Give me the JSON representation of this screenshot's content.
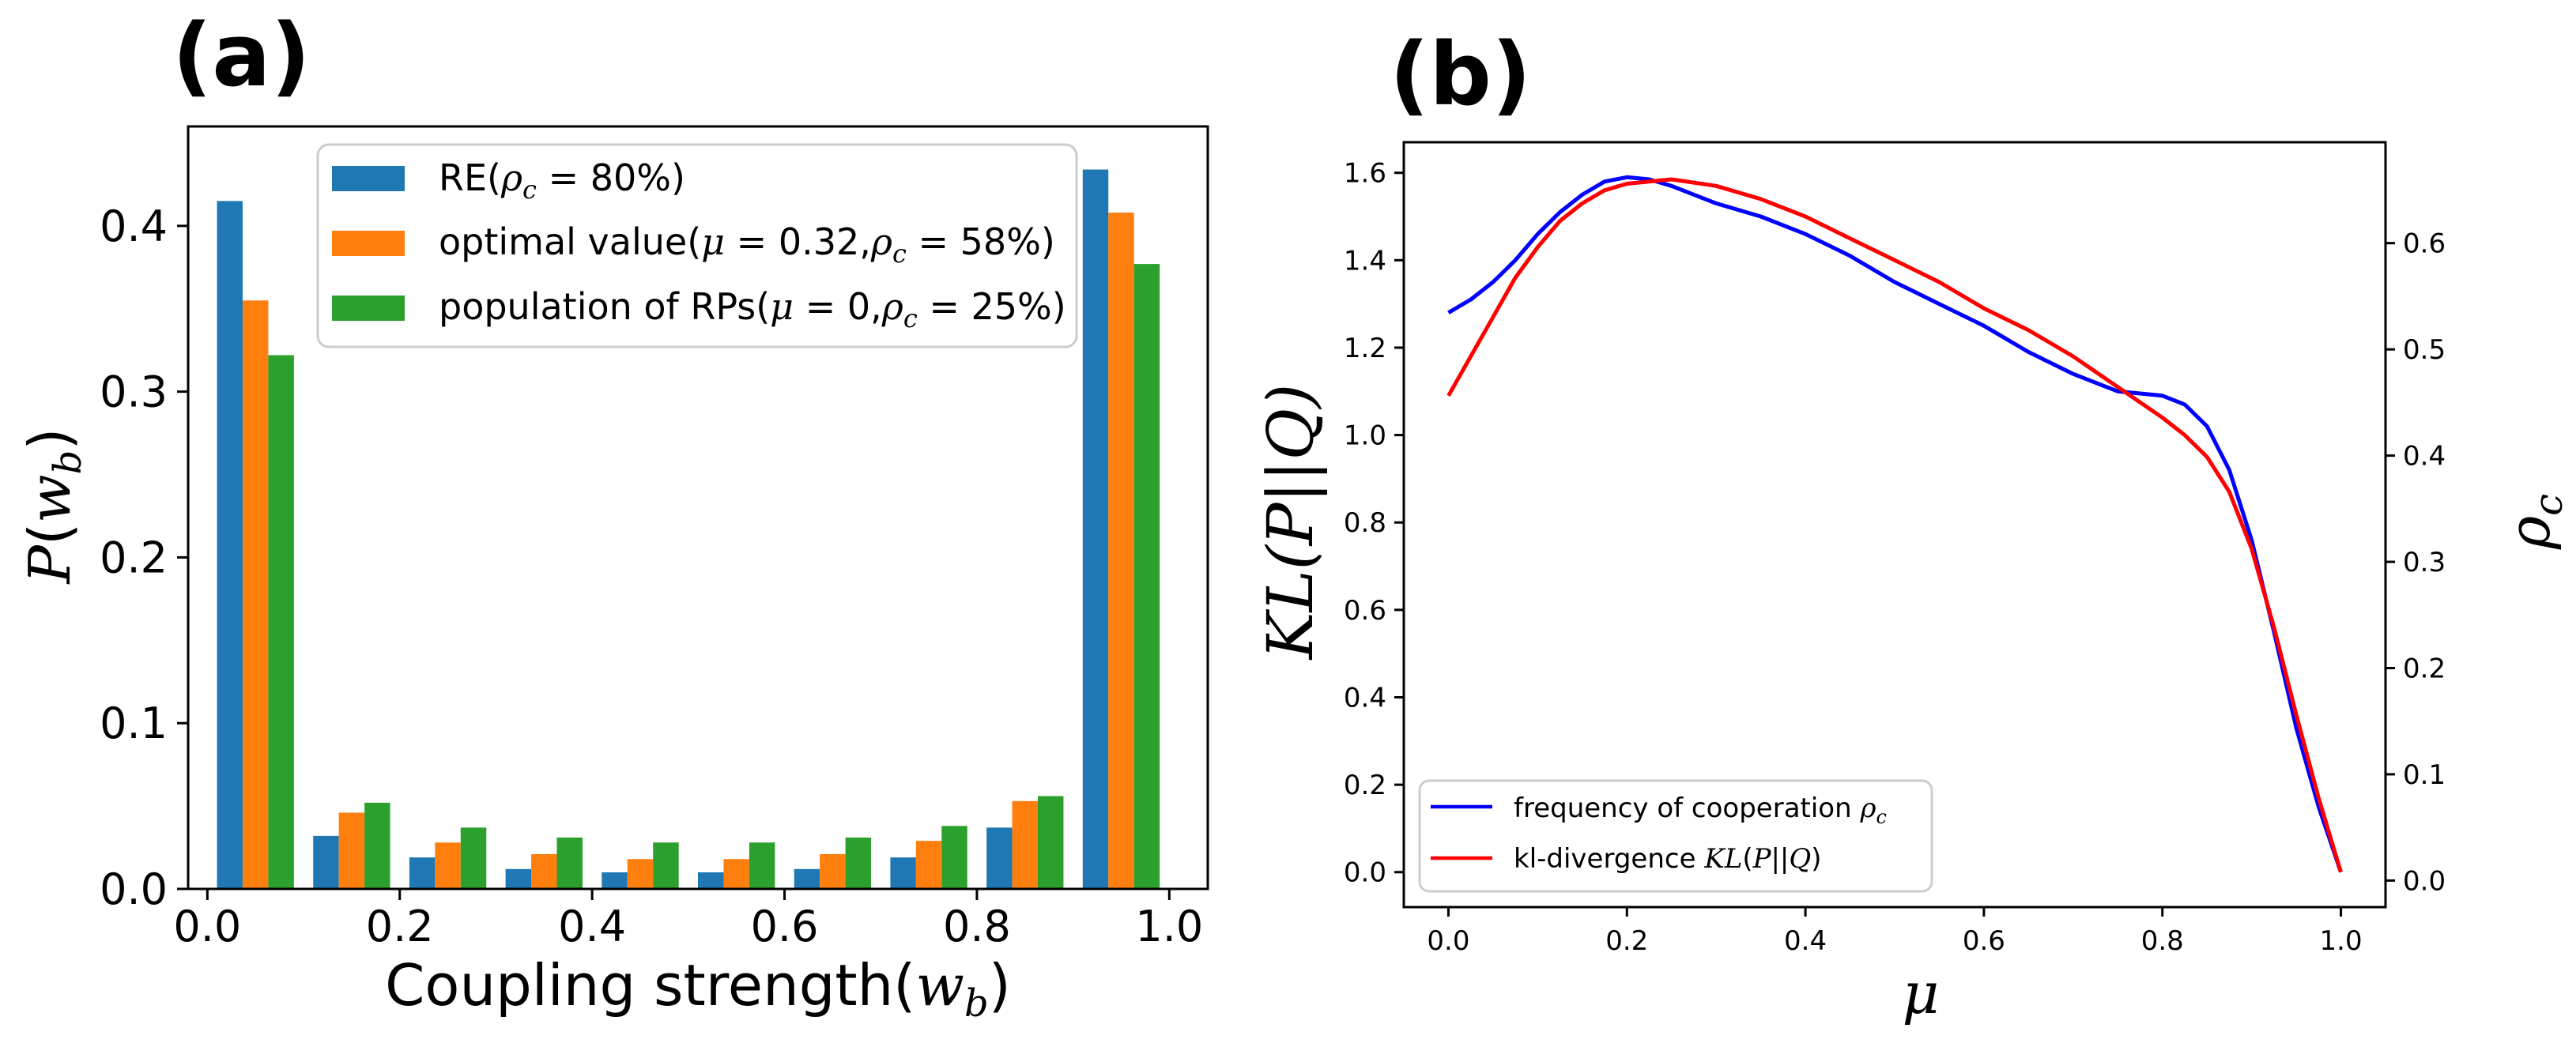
{
  "panel_a": {
    "label": "(a)",
    "chart_data": {
      "type": "bar",
      "xlabel": "Coupling strength(w_b)",
      "ylabel": "P(w_b)",
      "xlim": [
        -0.02,
        1.04
      ],
      "ylim": [
        0,
        0.46
      ],
      "xticks": [
        0.0,
        0.2,
        0.4,
        0.6,
        0.8,
        1.0
      ],
      "xtick_labels": [
        "0.0",
        "0.2",
        "0.4",
        "0.6",
        "0.8",
        "1.0"
      ],
      "yticks": [
        0.0,
        0.1,
        0.2,
        0.3,
        0.4
      ],
      "ytick_labels": [
        "0.0",
        "0.1",
        "0.2",
        "0.3",
        "0.4"
      ],
      "bin_centers": [
        0.05,
        0.15,
        0.25,
        0.35,
        0.45,
        0.55,
        0.65,
        0.75,
        0.85,
        0.95
      ],
      "series": [
        {
          "name": "RE",
          "legend": "RE(ρ_c = 80%)",
          "color": "#1f77b4",
          "values": [
            0.415,
            0.032,
            0.019,
            0.012,
            0.01,
            0.01,
            0.012,
            0.019,
            0.037,
            0.434
          ]
        },
        {
          "name": "optimal",
          "legend": "optimal value(μ = 0.32, ρ_c = 58%)",
          "color": "#ff7f0e",
          "values": [
            0.355,
            0.046,
            0.028,
            0.021,
            0.018,
            0.018,
            0.021,
            0.029,
            0.053,
            0.408
          ]
        },
        {
          "name": "population",
          "legend": "population of RPs(μ = 0, ρ_c = 25%)",
          "color": "#2ca02c",
          "values": [
            0.322,
            0.052,
            0.037,
            0.031,
            0.028,
            0.028,
            0.031,
            0.038,
            0.056,
            0.377
          ]
        }
      ],
      "legend_position": "upper-center"
    }
  },
  "panel_b": {
    "label": "(b)",
    "chart_data": {
      "type": "line",
      "xlabel": "μ",
      "ylabel_left": "KL(P||Q)",
      "ylabel_right": "ρ_c",
      "xlim": [
        -0.05,
        1.05
      ],
      "ylim_left": [
        -0.08,
        1.67
      ],
      "ylim_right": [
        -0.025,
        0.695
      ],
      "xticks": [
        0.0,
        0.2,
        0.4,
        0.6,
        0.8,
        1.0
      ],
      "xtick_labels": [
        "0.0",
        "0.2",
        "0.4",
        "0.6",
        "0.8",
        "1.0"
      ],
      "yticks_left": [
        0.0,
        0.2,
        0.4,
        0.6,
        0.8,
        1.0,
        1.2,
        1.4,
        1.6
      ],
      "ytick_labels_left": [
        "0.0",
        "0.2",
        "0.4",
        "0.6",
        "0.8",
        "1.0",
        "1.2",
        "1.4",
        "1.6"
      ],
      "yticks_right": [
        0.0,
        0.1,
        0.2,
        0.3,
        0.4,
        0.5,
        0.6
      ],
      "ytick_labels_right": [
        "0.0",
        "0.1",
        "0.2",
        "0.3",
        "0.4",
        "0.5",
        "0.6"
      ],
      "series": [
        {
          "name": "frequency of cooperation",
          "legend": "frequency of cooperation ρ_c",
          "color": "#0000ff",
          "axis": "left",
          "x": [
            0.0,
            0.025,
            0.05,
            0.075,
            0.1,
            0.125,
            0.15,
            0.175,
            0.2,
            0.225,
            0.25,
            0.3,
            0.35,
            0.4,
            0.45,
            0.5,
            0.55,
            0.6,
            0.65,
            0.7,
            0.75,
            0.8,
            0.825,
            0.85,
            0.875,
            0.9,
            0.925,
            0.95,
            0.975,
            1.0
          ],
          "y": [
            1.28,
            1.31,
            1.35,
            1.4,
            1.46,
            1.51,
            1.55,
            1.58,
            1.59,
            1.585,
            1.57,
            1.53,
            1.5,
            1.46,
            1.41,
            1.35,
            1.3,
            1.25,
            1.19,
            1.14,
            1.1,
            1.09,
            1.07,
            1.02,
            0.92,
            0.76,
            0.55,
            0.33,
            0.15,
            0.0
          ]
        },
        {
          "name": "kl-divergence",
          "legend": "kl-divergence KL(P||Q)",
          "color": "#ff0000",
          "axis": "left",
          "x": [
            0.0,
            0.025,
            0.05,
            0.075,
            0.1,
            0.125,
            0.15,
            0.175,
            0.2,
            0.25,
            0.3,
            0.35,
            0.4,
            0.45,
            0.5,
            0.55,
            0.6,
            0.65,
            0.7,
            0.75,
            0.8,
            0.825,
            0.85,
            0.875,
            0.9,
            0.925,
            0.95,
            0.975,
            1.0
          ],
          "y": [
            1.09,
            1.18,
            1.27,
            1.36,
            1.43,
            1.49,
            1.53,
            1.56,
            1.575,
            1.585,
            1.57,
            1.54,
            1.5,
            1.45,
            1.4,
            1.35,
            1.29,
            1.24,
            1.18,
            1.11,
            1.04,
            1.0,
            0.95,
            0.87,
            0.74,
            0.56,
            0.36,
            0.17,
            0.0
          ]
        }
      ],
      "legend_position": "lower-left"
    }
  }
}
